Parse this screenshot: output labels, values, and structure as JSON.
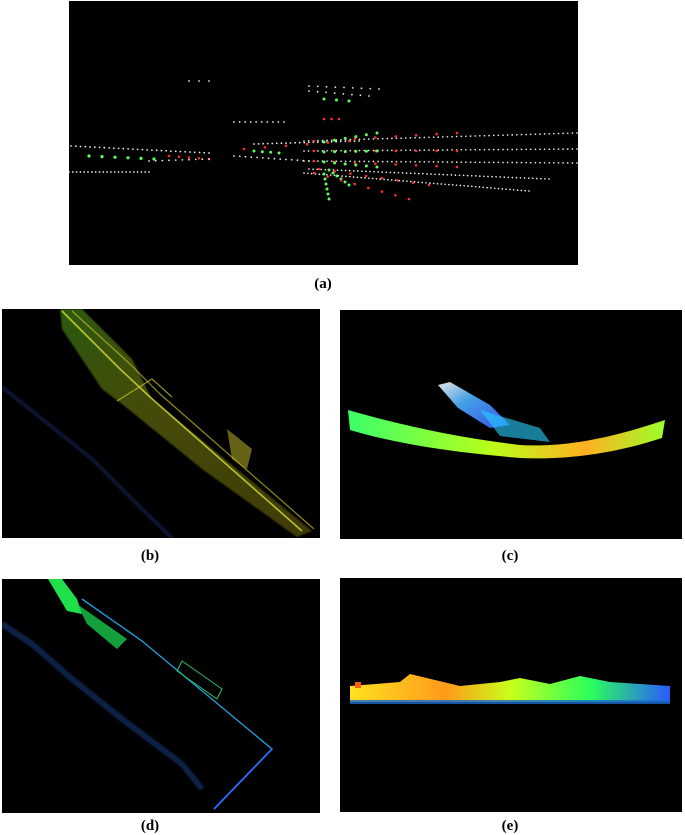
{
  "captions": {
    "a": "(a)",
    "b": "(b)",
    "c": "(c)",
    "d": "(d)",
    "e": "(e)"
  },
  "colors": {
    "background": "#000000",
    "point_white": "#e8e8e8",
    "point_red": "#ff2a2a",
    "point_green": "#5cff5c"
  }
}
